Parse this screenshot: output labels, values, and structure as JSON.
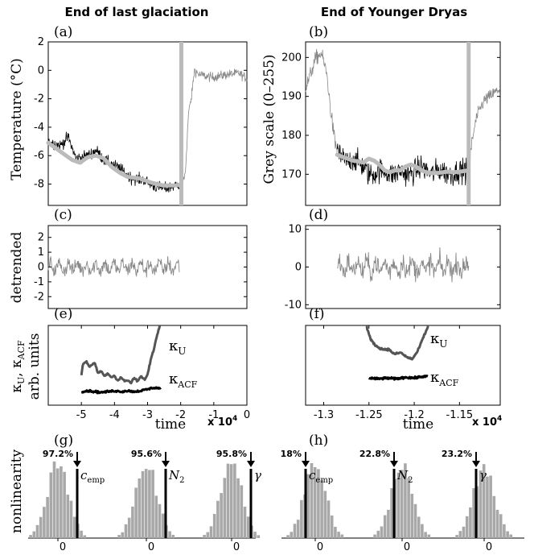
{
  "headers": {
    "left": "End of last glaciation",
    "right": "End of Younger Dryas"
  },
  "panels": {
    "a": "(a)",
    "b": "(b)",
    "c": "(c)",
    "d": "(d)",
    "e": "(e)",
    "f": "(f)",
    "g": "(g)",
    "h": "(h)"
  },
  "labels": {
    "temp_ylabel": "Temperature (°C)",
    "grey_ylabel": "Grey scale (0–255)",
    "detrended_ylabel": "detrended",
    "kappa_ylabel_1": "κ",
    "kappa_ylabel_1_sub1": "U",
    "kappa_ylabel_1_comma": ", κ",
    "kappa_ylabel_1_sub2": "ACF",
    "kappa_ylabel_2": "arb. units",
    "nonlinearity_ylabel": "nonlinearity",
    "time_left": "time",
    "time_right": "time",
    "exp_left": "x 10",
    "exp_left_pow": "4",
    "exp_right": "x 10",
    "exp_right_pow": "4",
    "kappa_u": "κ",
    "kappa_u_sub": "U",
    "kappa_acf": "κ",
    "kappa_acf_sub": "ACF"
  },
  "stats": {
    "left": [
      {
        "pct": "97.2%",
        "name": "c",
        "sub": "emp",
        "zero": "0"
      },
      {
        "pct": "95.6%",
        "name": "N",
        "sub": "2",
        "zero": "0"
      },
      {
        "pct": "95.8%",
        "name": "γ",
        "sub": "",
        "zero": "0"
      }
    ],
    "right": [
      {
        "pct": "18%",
        "name": "c",
        "sub": "emp",
        "zero": "0"
      },
      {
        "pct": "22.8%",
        "name": "N",
        "sub": "2",
        "zero": "0"
      },
      {
        "pct": "23.2%",
        "name": "γ",
        "sub": "",
        "zero": "0"
      }
    ]
  },
  "chart_data": [
    {
      "id": "a",
      "type": "line",
      "xlim": [
        -50000,
        0
      ],
      "ylim": [
        -9.5,
        2
      ],
      "yticks": [
        2,
        0,
        -2,
        -4,
        -6,
        -8
      ],
      "ylabel": "Temperature (°C)",
      "marker_x": -16500,
      "colors": {
        "raw": "#000000",
        "trend": "#bbbbbb",
        "marker": "#bbbbbb",
        "post": "#888888"
      },
      "series": [
        {
          "role": "raw_pre",
          "anchors": [
            [
              -50000,
              -5.0
            ],
            [
              -47000,
              -5.3
            ],
            [
              -45000,
              -4.7
            ],
            [
              -43000,
              -6.2
            ],
            [
              -40000,
              -6.0
            ],
            [
              -38000,
              -5.6
            ],
            [
              -36000,
              -6.3
            ],
            [
              -34000,
              -6.6
            ],
            [
              -32000,
              -6.9
            ],
            [
              -29000,
              -7.6
            ],
            [
              -26000,
              -7.7
            ],
            [
              -23000,
              -8.2
            ],
            [
              -20000,
              -8.3
            ],
            [
              -17000,
              -8.0
            ]
          ],
          "noise": 0.75
        },
        {
          "role": "trend",
          "values": [
            [
              -50000,
              -5.1
            ],
            [
              -48000,
              -5.5
            ],
            [
              -46000,
              -5.9
            ],
            [
              -44000,
              -6.3
            ],
            [
              -42000,
              -6.5
            ],
            [
              -40000,
              -6.1
            ],
            [
              -38000,
              -6.0
            ],
            [
              -36000,
              -6.2
            ],
            [
              -34000,
              -6.8
            ],
            [
              -32000,
              -7.2
            ],
            [
              -30000,
              -7.5
            ],
            [
              -27000,
              -7.6
            ],
            [
              -24000,
              -7.9
            ],
            [
              -21000,
              -8.1
            ],
            [
              -18000,
              -8.1
            ],
            [
              -16500,
              -8.0
            ]
          ]
        },
        {
          "role": "raw_post",
          "anchors": [
            [
              -16500,
              -8.0
            ],
            [
              -15500,
              -7.3
            ],
            [
              -14700,
              -3.0
            ],
            [
              -14000,
              -2.0
            ],
            [
              -13200,
              0.0
            ],
            [
              -12000,
              -0.3
            ],
            [
              -9000,
              -0.5
            ],
            [
              -5000,
              -0.3
            ],
            [
              -2000,
              -0.2
            ],
            [
              0,
              -0.6
            ]
          ],
          "noise": 0.6
        }
      ]
    },
    {
      "id": "b",
      "type": "line",
      "xlim": [
        -13200,
        -11350
      ],
      "ylim": [
        162,
        204
      ],
      "yticks": [
        200,
        190,
        180,
        170
      ],
      "ylabel": "Grey scale (0–255)",
      "marker_x": -11650,
      "colors": {
        "raw": "#000000",
        "trend": "#bbbbbb",
        "marker": "#bbbbbb",
        "post": "#888888"
      },
      "series": [
        {
          "role": "raw_pre_grey",
          "anchors": [
            [
              -13200,
              192
            ],
            [
              -13150,
              196
            ],
            [
              -13100,
              200
            ],
            [
              -13050,
              201
            ],
            [
              -13000,
              196
            ],
            [
              -12960,
              186
            ],
            [
              -12920,
              178
            ],
            [
              -12900,
              176
            ]
          ],
          "noise": 3.5
        },
        {
          "role": "raw_pre",
          "anchors": [
            [
              -12900,
              176
            ],
            [
              -12850,
              174
            ],
            [
              -12800,
              173
            ],
            [
              -12750,
              174
            ],
            [
              -12700,
              173
            ],
            [
              -12650,
              172
            ],
            [
              -12600,
              170
            ],
            [
              -12550,
              170
            ],
            [
              -12500,
              171
            ],
            [
              -12450,
              171
            ],
            [
              -12400,
              170
            ],
            [
              -12350,
              170
            ],
            [
              -12300,
              171
            ],
            [
              -12250,
              170
            ],
            [
              -12200,
              170
            ],
            [
              -12150,
              171
            ],
            [
              -12100,
              172
            ],
            [
              -12050,
              171
            ],
            [
              -12000,
              170
            ],
            [
              -11950,
              171
            ],
            [
              -11900,
              171
            ],
            [
              -11850,
              170
            ],
            [
              -11800,
              170
            ],
            [
              -11750,
              171
            ],
            [
              -11700,
              171
            ],
            [
              -11650,
              171
            ]
          ],
          "noise": 5.5
        },
        {
          "role": "trend",
          "values": [
            [
              -12900,
              175
            ],
            [
              -12850,
              174.5
            ],
            [
              -12800,
              174
            ],
            [
              -12750,
              173.5
            ],
            [
              -12700,
              173.3
            ],
            [
              -12650,
              173
            ],
            [
              -12600,
              174
            ],
            [
              -12550,
              173.5
            ],
            [
              -12500,
              172.5
            ],
            [
              -12450,
              171
            ],
            [
              -12400,
              170.5
            ],
            [
              -12350,
              171
            ],
            [
              -12300,
              171
            ],
            [
              -12250,
              172
            ],
            [
              -12200,
              172.5
            ],
            [
              -12150,
              172
            ],
            [
              -12100,
              171
            ],
            [
              -12050,
              170.5
            ],
            [
              -12000,
              170.3
            ],
            [
              -11950,
              170.3
            ],
            [
              -11900,
              170.5
            ],
            [
              -11850,
              170.7
            ],
            [
              -11800,
              170.5
            ],
            [
              -11750,
              170.6
            ],
            [
              -11700,
              170.8
            ],
            [
              -11650,
              171
            ]
          ]
        },
        {
          "role": "raw_post",
          "anchors": [
            [
              -11650,
              171
            ],
            [
              -11620,
              178
            ],
            [
              -11580,
              184
            ],
            [
              -11540,
              187
            ],
            [
              -11500,
              189
            ],
            [
              -11450,
              190
            ],
            [
              -11400,
              191
            ],
            [
              -11350,
              192
            ]
          ],
          "noise": 3.0
        }
      ]
    },
    {
      "id": "c",
      "type": "line",
      "xlim": [
        -50000,
        0
      ],
      "ylim": [
        -2.8,
        2.8
      ],
      "yticks": [
        2,
        1,
        0,
        -1,
        -2
      ],
      "ylabel": "detrended",
      "series": [
        {
          "role": "noise",
          "xrange": [
            -50000,
            -17000
          ],
          "amp": 0.85,
          "color": "#888888"
        }
      ]
    },
    {
      "id": "d",
      "type": "line",
      "xlim": [
        -13200,
        -11350
      ],
      "ylim": [
        -11,
        11
      ],
      "yticks": [
        10,
        0,
        -10
      ],
      "ylabel": "detrended",
      "series": [
        {
          "role": "noise",
          "xrange": [
            -12900,
            -11650
          ],
          "amp": 4.5,
          "color": "#888888"
        }
      ]
    },
    {
      "id": "e",
      "type": "line",
      "xlim": [
        -60000,
        0
      ],
      "ylim": [
        0,
        1
      ],
      "xticks": [
        -50000,
        -40000,
        -30000,
        -20000,
        -10000,
        0
      ],
      "xticklabels": [
        "-5",
        "-4",
        "-3",
        "-2",
        "-1",
        "0"
      ],
      "xlabel": "time",
      "series": [
        {
          "name": "κ_U",
          "color": "#555555",
          "values": [
            [
              -50000,
              0.38
            ],
            [
              -49500,
              0.52
            ],
            [
              -48500,
              0.55
            ],
            [
              -47500,
              0.48
            ],
            [
              -46000,
              0.53
            ],
            [
              -45000,
              0.4
            ],
            [
              -44000,
              0.43
            ],
            [
              -43000,
              0.36
            ],
            [
              -42000,
              0.4
            ],
            [
              -41000,
              0.35
            ],
            [
              -40000,
              0.37
            ],
            [
              -39000,
              0.31
            ],
            [
              -38000,
              0.35
            ],
            [
              -37000,
              0.3
            ],
            [
              -36000,
              0.31
            ],
            [
              -35000,
              0.28
            ],
            [
              -34000,
              0.34
            ],
            [
              -33000,
              0.3
            ],
            [
              -32000,
              0.36
            ],
            [
              -31000,
              0.32
            ],
            [
              -30000,
              0.38
            ],
            [
              -29000,
              0.58
            ],
            [
              -28000,
              0.72
            ],
            [
              -27000,
              0.9
            ],
            [
              -26300,
              1.0
            ]
          ]
        },
        {
          "name": "κ_ACF",
          "color": "#000000",
          "values": [
            [
              -50000,
              0.17
            ],
            [
              -48000,
              0.18
            ],
            [
              -46000,
              0.17
            ],
            [
              -44000,
              0.16
            ],
            [
              -42000,
              0.17
            ],
            [
              -40000,
              0.18
            ],
            [
              -38000,
              0.17
            ],
            [
              -36000,
              0.18
            ],
            [
              -34000,
              0.17
            ],
            [
              -32000,
              0.18
            ],
            [
              -30000,
              0.2
            ],
            [
              -28000,
              0.22
            ],
            [
              -26000,
              0.21
            ]
          ]
        }
      ]
    },
    {
      "id": "f",
      "type": "line",
      "xlim": [
        -13200,
        -11050
      ],
      "ylim": [
        0,
        1
      ],
      "xticks": [
        -13000,
        -12500,
        -12000,
        -11500
      ],
      "xticklabels": [
        "-1.3",
        "-1.25",
        "-1.2",
        "-1.15"
      ],
      "xlabel": "time",
      "series": [
        {
          "name": "κ_U",
          "color": "#555555",
          "values": [
            [
              -12530,
              1.0
            ],
            [
              -12480,
              0.82
            ],
            [
              -12420,
              0.74
            ],
            [
              -12350,
              0.7
            ],
            [
              -12280,
              0.7
            ],
            [
              -12220,
              0.64
            ],
            [
              -12150,
              0.66
            ],
            [
              -12080,
              0.6
            ],
            [
              -12020,
              0.58
            ],
            [
              -11960,
              0.68
            ],
            [
              -11900,
              0.85
            ],
            [
              -11840,
              1.0
            ]
          ]
        },
        {
          "name": "κ_ACF",
          "color": "#000000",
          "values": [
            [
              -12500,
              0.34
            ],
            [
              -12400,
              0.33
            ],
            [
              -12300,
              0.34
            ],
            [
              -12200,
              0.33
            ],
            [
              -12100,
              0.35
            ],
            [
              -12000,
              0.34
            ],
            [
              -11900,
              0.36
            ],
            [
              -11850,
              0.36
            ]
          ]
        }
      ]
    },
    {
      "id": "g",
      "type": "bar",
      "description_free": true,
      "series": [
        {
          "name": "c_emp",
          "observed_percentile": 97.2
        },
        {
          "name": "N_2",
          "observed_percentile": 95.6
        },
        {
          "name": "γ",
          "observed_percentile": 95.8
        }
      ]
    },
    {
      "id": "h",
      "type": "bar",
      "series": [
        {
          "name": "c_emp",
          "observed_percentile": 18.0
        },
        {
          "name": "N_2",
          "observed_percentile": 22.8
        },
        {
          "name": "γ",
          "observed_percentile": 23.2
        }
      ]
    }
  ]
}
